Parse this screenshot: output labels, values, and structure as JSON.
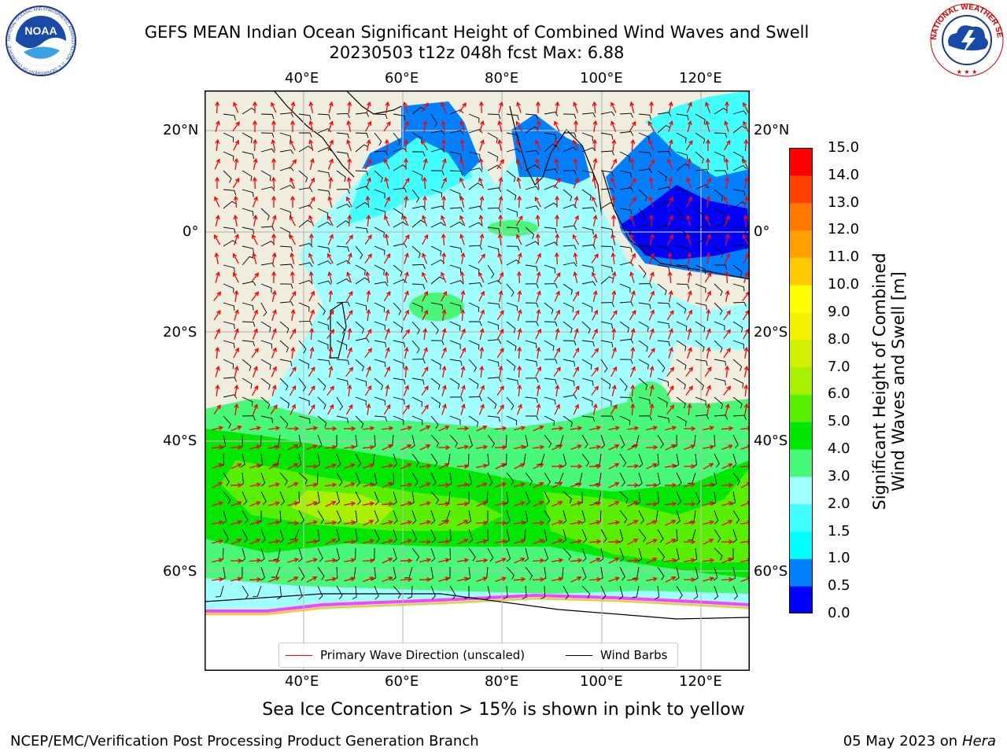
{
  "header": {
    "title_line1": "GEFS MEAN Indian Ocean Significant Height of Combined Wind Waves and Swell",
    "title_line2": "20230503 t12z 048h fcst   Max: 6.88"
  },
  "logos": {
    "noaa_text": "NOAA",
    "noaa_ring_text": "NATIONAL OCEANIC AND ATMOSPHERIC ADMINISTRATION · U.S. DEPARTMENT OF COMMERCE",
    "nws_ring_text": "NATIONAL WEATHER SERVICE"
  },
  "map": {
    "lon_labels": [
      "40°E",
      "60°E",
      "80°E",
      "100°E",
      "120°E"
    ],
    "lat_labels": [
      "20°N",
      "0°",
      "20°S",
      "40°S",
      "60°S"
    ],
    "land_color": "#efedde",
    "gridline_color": "#bbbbbb",
    "primary_wave_arrow_color": "#ff0000",
    "wind_barb_color": "#000000"
  },
  "legend": {
    "primary_wave_label": "Primary Wave Direction (unscaled)",
    "wind_barbs_label": "Wind Barbs"
  },
  "colorbar": {
    "title_line1": "Significant Height of Combined",
    "title_line2": "Wind Waves and Swell [m]",
    "tick_labels": [
      "0.0",
      "0.5",
      "1.0",
      "1.5",
      "2.0",
      "3.0",
      "4.0",
      "5.0",
      "6.0",
      "7.0",
      "8.0",
      "9.0",
      "10.0",
      "11.0",
      "12.0",
      "13.0",
      "14.0",
      "15.0"
    ],
    "colors": [
      "#0000ff",
      "#0080ff",
      "#00ffff",
      "#40ffff",
      "#a0ffff",
      "#48f878",
      "#00e800",
      "#58f000",
      "#a8f000",
      "#d0f000",
      "#f0f000",
      "#ffff00",
      "#ffc800",
      "#ffa000",
      "#ff7800",
      "#ff4000",
      "#ff0000"
    ]
  },
  "notes": {
    "sea_ice": "Sea Ice Concentration > 15% is shown in pink to yellow"
  },
  "footer": {
    "left": "NCEP/EMC/Verification Post Processing Product Generation Branch",
    "right_date": "05 May 2023 on",
    "right_host": "Hera"
  }
}
